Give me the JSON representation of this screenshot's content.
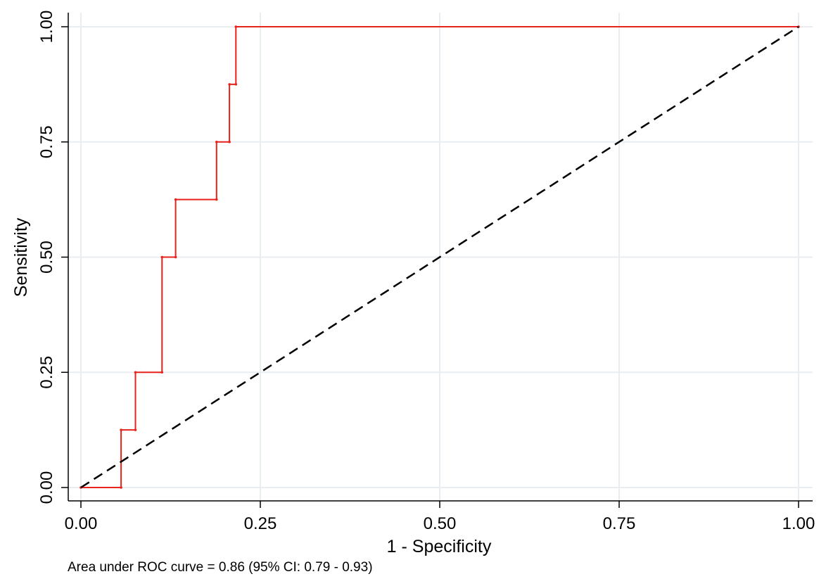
{
  "chart_data": {
    "type": "line",
    "xlabel": "1 - Specificity",
    "ylabel": "Sensitivity",
    "xlim": [
      0,
      1
    ],
    "ylim": [
      0,
      1
    ],
    "x_ticks": [
      "0.00",
      "0.25",
      "0.50",
      "0.75",
      "1.00"
    ],
    "y_ticks": [
      "0.00",
      "0.25",
      "0.50",
      "0.75",
      "1.00"
    ],
    "grid": true,
    "note": "Area under ROC curve = 0.86 (95% CI: 0.79 - 0.93)",
    "series": [
      {
        "style": "step",
        "color": "#e8231d",
        "points": [
          [
            0.0,
            0.0
          ],
          [
            0.056,
            0.0
          ],
          [
            0.056,
            0.125
          ],
          [
            0.076,
            0.125
          ],
          [
            0.076,
            0.25
          ],
          [
            0.113,
            0.25
          ],
          [
            0.113,
            0.5
          ],
          [
            0.132,
            0.5
          ],
          [
            0.132,
            0.625
          ],
          [
            0.189,
            0.625
          ],
          [
            0.189,
            0.75
          ],
          [
            0.207,
            0.75
          ],
          [
            0.207,
            0.875
          ],
          [
            0.216,
            0.875
          ],
          [
            0.216,
            1.0
          ],
          [
            1.0,
            1.0
          ]
        ]
      },
      {
        "style": "dashed",
        "color": "#000000",
        "points": [
          [
            0,
            0
          ],
          [
            1,
            1
          ]
        ]
      }
    ]
  }
}
